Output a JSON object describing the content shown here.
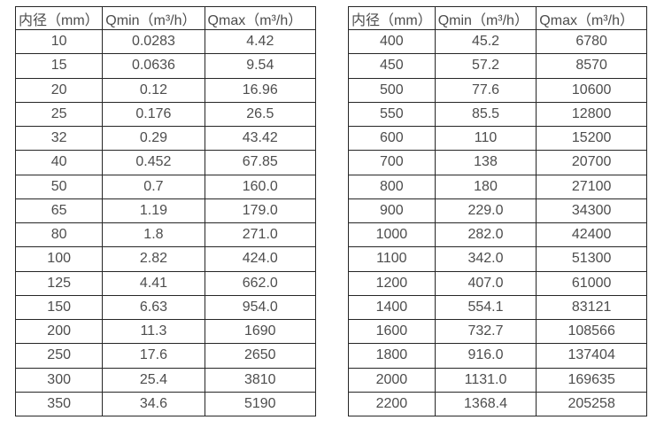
{
  "page": {
    "background_color": "#ffffff",
    "text_color": "#4d4d4d",
    "border_color": "#262626"
  },
  "tables": [
    {
      "name": "flow-rate-table-left",
      "headers": [
        "内径（mm）",
        "Qmin（m³/h）",
        "Qmax（m³/h）"
      ],
      "rows": [
        [
          "10",
          "0.0283",
          "4.42"
        ],
        [
          "15",
          "0.0636",
          "9.54"
        ],
        [
          "20",
          "0.12",
          "16.96"
        ],
        [
          "25",
          "0.176",
          "26.5"
        ],
        [
          "32",
          "0.29",
          "43.42"
        ],
        [
          "40",
          "0.452",
          "67.85"
        ],
        [
          "50",
          "0.7",
          "160.0"
        ],
        [
          "65",
          "1.19",
          "179.0"
        ],
        [
          "80",
          "1.8",
          "271.0"
        ],
        [
          "100",
          "2.82",
          "424.0"
        ],
        [
          "125",
          "4.41",
          "662.0"
        ],
        [
          "150",
          "6.63",
          "954.0"
        ],
        [
          "200",
          "11.3",
          "1690"
        ],
        [
          "250",
          "17.6",
          "2650"
        ],
        [
          "300",
          "25.4",
          "3810"
        ],
        [
          "350",
          "34.6",
          "5190"
        ]
      ]
    },
    {
      "name": "flow-rate-table-right",
      "headers": [
        "内径（mm）",
        "Qmin（m³/h）",
        "Qmax（m³/h）"
      ],
      "rows": [
        [
          "400",
          "45.2",
          "6780"
        ],
        [
          "450",
          "57.2",
          "8570"
        ],
        [
          "500",
          "77.6",
          "10600"
        ],
        [
          "550",
          "85.5",
          "12800"
        ],
        [
          "600",
          "110",
          "15200"
        ],
        [
          "700",
          "138",
          "20700"
        ],
        [
          "800",
          "180",
          "27100"
        ],
        [
          "900",
          "229.0",
          "34300"
        ],
        [
          "1000",
          "282.0",
          "42400"
        ],
        [
          "1100",
          "342.0",
          "51300"
        ],
        [
          "1200",
          "407.0",
          "61000"
        ],
        [
          "1400",
          "554.1",
          "83121"
        ],
        [
          "1600",
          "732.7",
          "108566"
        ],
        [
          "1800",
          "916.0",
          "137404"
        ],
        [
          "2000",
          "1131.0",
          "169635"
        ],
        [
          "2200",
          "1368.4",
          "205258"
        ]
      ]
    }
  ]
}
